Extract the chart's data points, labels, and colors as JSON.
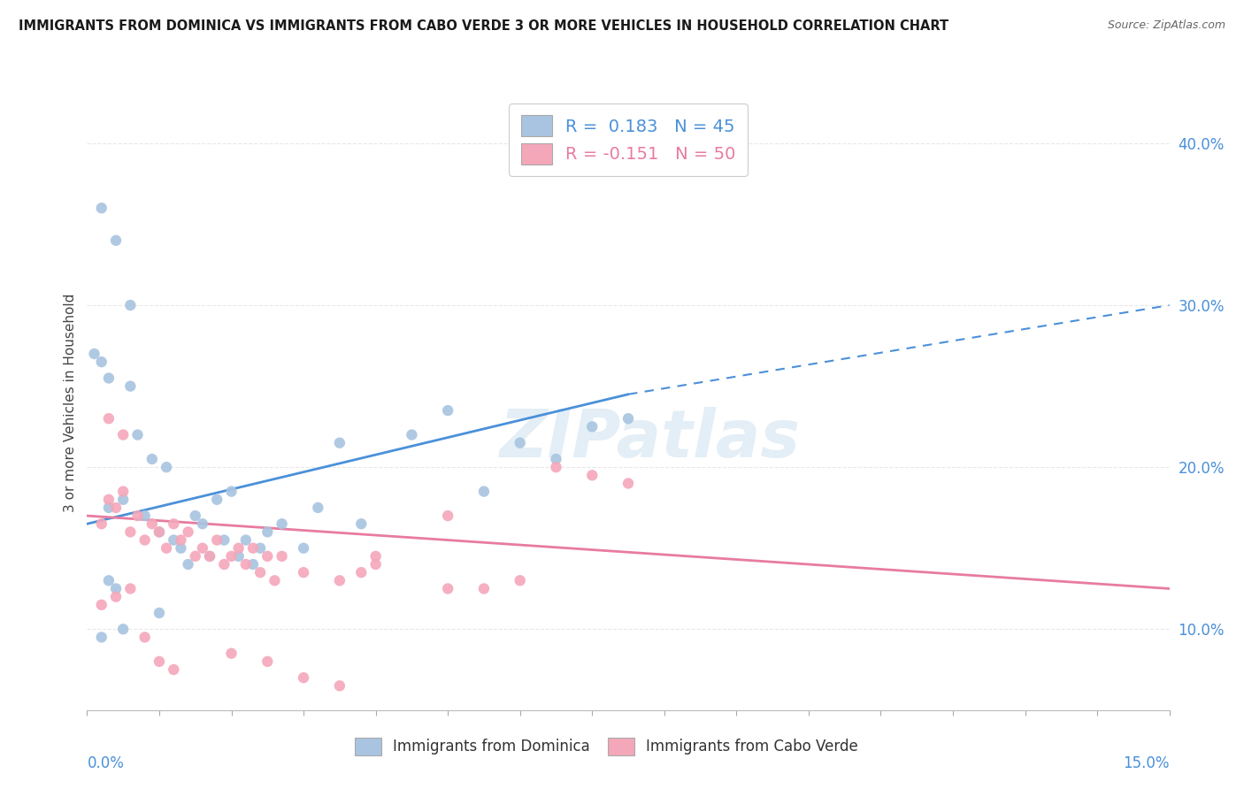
{
  "title": "IMMIGRANTS FROM DOMINICA VS IMMIGRANTS FROM CABO VERDE 3 OR MORE VEHICLES IN HOUSEHOLD CORRELATION CHART",
  "source": "Source: ZipAtlas.com",
  "ylabel": "3 or more Vehicles in Household",
  "xlim": [
    0.0,
    15.0
  ],
  "ylim": [
    5.0,
    43.0
  ],
  "dominica_R": 0.183,
  "dominica_N": 45,
  "caboverde_R": -0.151,
  "caboverde_N": 50,
  "dominica_color": "#a8c4e0",
  "caboverde_color": "#f4a7b9",
  "dominica_line_color": "#4a90d9",
  "caboverde_line_color": "#e87ba0",
  "dominica_scatter_x": [
    0.3,
    0.5,
    0.6,
    0.7,
    0.8,
    0.9,
    1.0,
    1.1,
    1.2,
    1.3,
    1.4,
    1.5,
    1.6,
    1.7,
    1.8,
    1.9,
    2.0,
    2.1,
    2.2,
    2.3,
    2.4,
    2.5,
    2.7,
    3.0,
    3.2,
    3.5,
    3.8,
    4.5,
    5.0,
    5.5,
    6.0,
    6.5,
    7.0,
    7.5,
    0.2,
    0.4,
    0.6,
    0.1,
    0.2,
    0.3,
    0.2,
    0.5,
    0.4,
    0.3,
    1.0
  ],
  "dominica_scatter_y": [
    17.5,
    18.0,
    25.0,
    22.0,
    17.0,
    20.5,
    16.0,
    20.0,
    15.5,
    15.0,
    14.0,
    17.0,
    16.5,
    14.5,
    18.0,
    15.5,
    18.5,
    14.5,
    15.5,
    14.0,
    15.0,
    16.0,
    16.5,
    15.0,
    17.5,
    21.5,
    16.5,
    22.0,
    23.5,
    18.5,
    21.5,
    20.5,
    22.5,
    23.0,
    36.0,
    34.0,
    30.0,
    27.0,
    26.5,
    25.5,
    9.5,
    10.0,
    12.5,
    13.0,
    11.0
  ],
  "caboverde_scatter_x": [
    0.2,
    0.3,
    0.4,
    0.5,
    0.6,
    0.7,
    0.8,
    0.9,
    1.0,
    1.1,
    1.2,
    1.3,
    1.4,
    1.5,
    1.6,
    1.7,
    1.8,
    1.9,
    2.0,
    2.1,
    2.2,
    2.3,
    2.4,
    2.5,
    2.6,
    2.7,
    3.0,
    3.5,
    3.8,
    4.0,
    5.0,
    5.5,
    6.0,
    6.5,
    7.0,
    7.5,
    0.3,
    0.5,
    0.2,
    0.4,
    0.6,
    0.8,
    1.0,
    1.2,
    2.0,
    2.5,
    3.0,
    3.5,
    4.0,
    5.0
  ],
  "caboverde_scatter_y": [
    16.5,
    18.0,
    17.5,
    18.5,
    16.0,
    17.0,
    15.5,
    16.5,
    16.0,
    15.0,
    16.5,
    15.5,
    16.0,
    14.5,
    15.0,
    14.5,
    15.5,
    14.0,
    14.5,
    15.0,
    14.0,
    15.0,
    13.5,
    14.5,
    13.0,
    14.5,
    13.5,
    13.0,
    13.5,
    14.0,
    12.5,
    12.5,
    13.0,
    20.0,
    19.5,
    19.0,
    23.0,
    22.0,
    11.5,
    12.0,
    12.5,
    9.5,
    8.0,
    7.5,
    8.5,
    8.0,
    7.0,
    6.5,
    14.5,
    17.0
  ],
  "dom_line_x0": 0.0,
  "dom_line_y0": 16.5,
  "dom_line_x1": 7.5,
  "dom_line_y1": 24.5,
  "dom_dash_x0": 7.5,
  "dom_dash_y0": 24.5,
  "dom_dash_x1": 15.0,
  "dom_dash_y1": 30.0,
  "cv_line_x0": 0.0,
  "cv_line_y0": 17.0,
  "cv_line_x1": 15.0,
  "cv_line_y1": 12.5,
  "watermark_text": "ZIPatlas",
  "background_color": "#ffffff",
  "grid_color": "#e8e8e8",
  "yticks": [
    10,
    20,
    30,
    40
  ],
  "ytick_labels": [
    "10.0%",
    "20.0%",
    "30.0%",
    "40.0%"
  ]
}
